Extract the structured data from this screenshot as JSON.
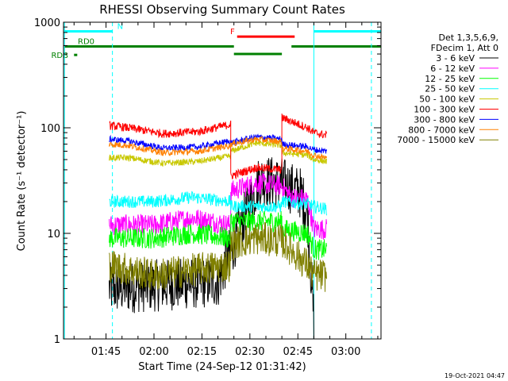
{
  "chart_data": {
    "type": "line",
    "title": "RHESSI Observing Summary Count Rates",
    "xlabel": "Start Time (24-Sep-12 01:31:42)",
    "ylabel": "Count Rate (s⁻¹ detector⁻¹)",
    "yscale": "log",
    "ylim": [
      1,
      1000
    ],
    "xlim": [
      "01:31:42",
      "03:11:00"
    ],
    "x_ticks": [
      "01:45",
      "02:00",
      "02:15",
      "02:30",
      "02:45",
      "03:00"
    ],
    "y_ticks": [
      "1",
      "10",
      "100",
      "1000"
    ],
    "grid": false,
    "legend_header": [
      "Det 1,3,5,6,9,",
      "FDecim 1, Att 0"
    ],
    "legend_position": "right",
    "timestamp": "19-Oct-2021 04:47",
    "series": [
      {
        "name": "3 - 6 keV",
        "color": "#000000",
        "knots": [
          [
            "01:46",
            3
          ],
          [
            "02:20",
            3.5
          ],
          [
            "02:25",
            8
          ],
          [
            "02:33",
            32
          ],
          [
            "02:40",
            30
          ],
          [
            "02:46",
            24
          ],
          [
            "02:48",
            15
          ],
          [
            "02:50",
            1.5
          ]
        ]
      },
      {
        "name": "6 - 12 keV",
        "color": "#ff00ff",
        "knots": [
          [
            "01:46",
            12
          ],
          [
            "02:00",
            12
          ],
          [
            "02:12",
            14
          ],
          [
            "02:24",
            12
          ],
          [
            "02:24",
            25
          ],
          [
            "02:32",
            30
          ],
          [
            "02:40",
            28
          ],
          [
            "02:43",
            22
          ],
          [
            "02:48",
            21
          ],
          [
            "02:50",
            11
          ],
          [
            "02:54",
            11
          ]
        ]
      },
      {
        "name": "12 - 25 keV",
        "color": "#00ff00",
        "knots": [
          [
            "01:46",
            9
          ],
          [
            "02:00",
            9
          ],
          [
            "02:12",
            10
          ],
          [
            "02:24",
            9
          ],
          [
            "02:24",
            13
          ],
          [
            "02:40",
            13
          ],
          [
            "02:40",
            11
          ],
          [
            "02:48",
            10
          ],
          [
            "02:50",
            7
          ],
          [
            "02:54",
            7
          ]
        ]
      },
      {
        "name": "25 - 50 keV",
        "color": "#00ffff",
        "knots": [
          [
            "01:46",
            20
          ],
          [
            "02:00",
            20
          ],
          [
            "02:12",
            22
          ],
          [
            "02:24",
            20
          ],
          [
            "02:24",
            18
          ],
          [
            "02:40",
            18
          ],
          [
            "02:40",
            20
          ],
          [
            "02:48",
            19
          ],
          [
            "02:50",
            18
          ],
          [
            "02:54",
            17
          ]
        ]
      },
      {
        "name": "50 - 100 keV",
        "color": "#c8c800",
        "knots": [
          [
            "01:46",
            52
          ],
          [
            "01:52",
            52
          ],
          [
            "02:03",
            46
          ],
          [
            "02:14",
            48
          ],
          [
            "02:24",
            54
          ],
          [
            "02:24",
            60
          ],
          [
            "02:32",
            72
          ],
          [
            "02:40",
            68
          ],
          [
            "02:40",
            58
          ],
          [
            "02:48",
            55
          ],
          [
            "02:50",
            50
          ],
          [
            "02:54",
            48
          ]
        ]
      },
      {
        "name": "100 - 300 keV",
        "color": "#ff0000",
        "knots": [
          [
            "01:46",
            105
          ],
          [
            "01:52",
            100
          ],
          [
            "02:03",
            88
          ],
          [
            "02:14",
            92
          ],
          [
            "02:24",
            108
          ],
          [
            "02:24",
            35
          ],
          [
            "02:32",
            42
          ],
          [
            "02:40",
            40
          ],
          [
            "02:40",
            125
          ],
          [
            "02:48",
            100
          ],
          [
            "02:50",
            90
          ],
          [
            "02:54",
            85
          ]
        ]
      },
      {
        "name": "300 - 800 keV",
        "color": "#0000ff",
        "knots": [
          [
            "01:46",
            78
          ],
          [
            "01:52",
            75
          ],
          [
            "02:03",
            64
          ],
          [
            "02:14",
            66
          ],
          [
            "02:24",
            75
          ],
          [
            "02:24",
            72
          ],
          [
            "02:32",
            82
          ],
          [
            "02:40",
            78
          ],
          [
            "02:40",
            70
          ],
          [
            "02:48",
            66
          ],
          [
            "02:50",
            62
          ],
          [
            "02:54",
            60
          ]
        ]
      },
      {
        "name": "800 - 7000 keV",
        "color": "#ff8000",
        "knots": [
          [
            "01:46",
            70
          ],
          [
            "01:52",
            68
          ],
          [
            "02:03",
            58
          ],
          [
            "02:14",
            60
          ],
          [
            "02:24",
            68
          ],
          [
            "02:24",
            70
          ],
          [
            "02:32",
            78
          ],
          [
            "02:40",
            74
          ],
          [
            "02:40",
            64
          ],
          [
            "02:48",
            60
          ],
          [
            "02:50",
            55
          ],
          [
            "02:54",
            52
          ]
        ]
      },
      {
        "name": "7000 - 15000 keV",
        "color": "#808000",
        "knots": [
          [
            "01:46",
            5
          ],
          [
            "02:00",
            4
          ],
          [
            "02:12",
            4.5
          ],
          [
            "02:24",
            5
          ],
          [
            "02:24",
            8
          ],
          [
            "02:32",
            9
          ],
          [
            "02:40",
            8.5
          ],
          [
            "02:48",
            5
          ],
          [
            "02:50",
            4
          ],
          [
            "02:54",
            4
          ]
        ]
      }
    ],
    "flag_bars": [
      {
        "label": "N",
        "color": "#00ffff",
        "segments": [
          [
            "01:32",
            "01:47"
          ],
          [
            "02:50",
            "03:11"
          ]
        ],
        "level": 820
      },
      {
        "label": "F",
        "color": "#ff0000",
        "segments": [
          [
            "02:26",
            "02:44"
          ]
        ],
        "level": 730
      },
      {
        "label": "RD0",
        "color": "#008000",
        "segments": [
          [
            "01:32",
            "02:25"
          ],
          [
            "02:43",
            "03:11"
          ]
        ],
        "level": 590
      },
      {
        "label": "",
        "color": "#008000",
        "segments": [
          [
            "02:25",
            "02:40"
          ]
        ],
        "level": 500
      },
      {
        "label": "RDB",
        "color": "#008000",
        "segments": [
          [
            "01:35",
            "01:36"
          ]
        ],
        "level": 490
      }
    ],
    "vertical_markers": [
      {
        "time": "01:32",
        "color": "#00ffff",
        "style": "solid"
      },
      {
        "time": "01:47",
        "color": "#00ffff",
        "style": "dashed"
      },
      {
        "time": "02:50",
        "color": "#00ffff",
        "style": "solid"
      },
      {
        "time": "03:08",
        "color": "#00ffff",
        "style": "dashed"
      }
    ]
  }
}
